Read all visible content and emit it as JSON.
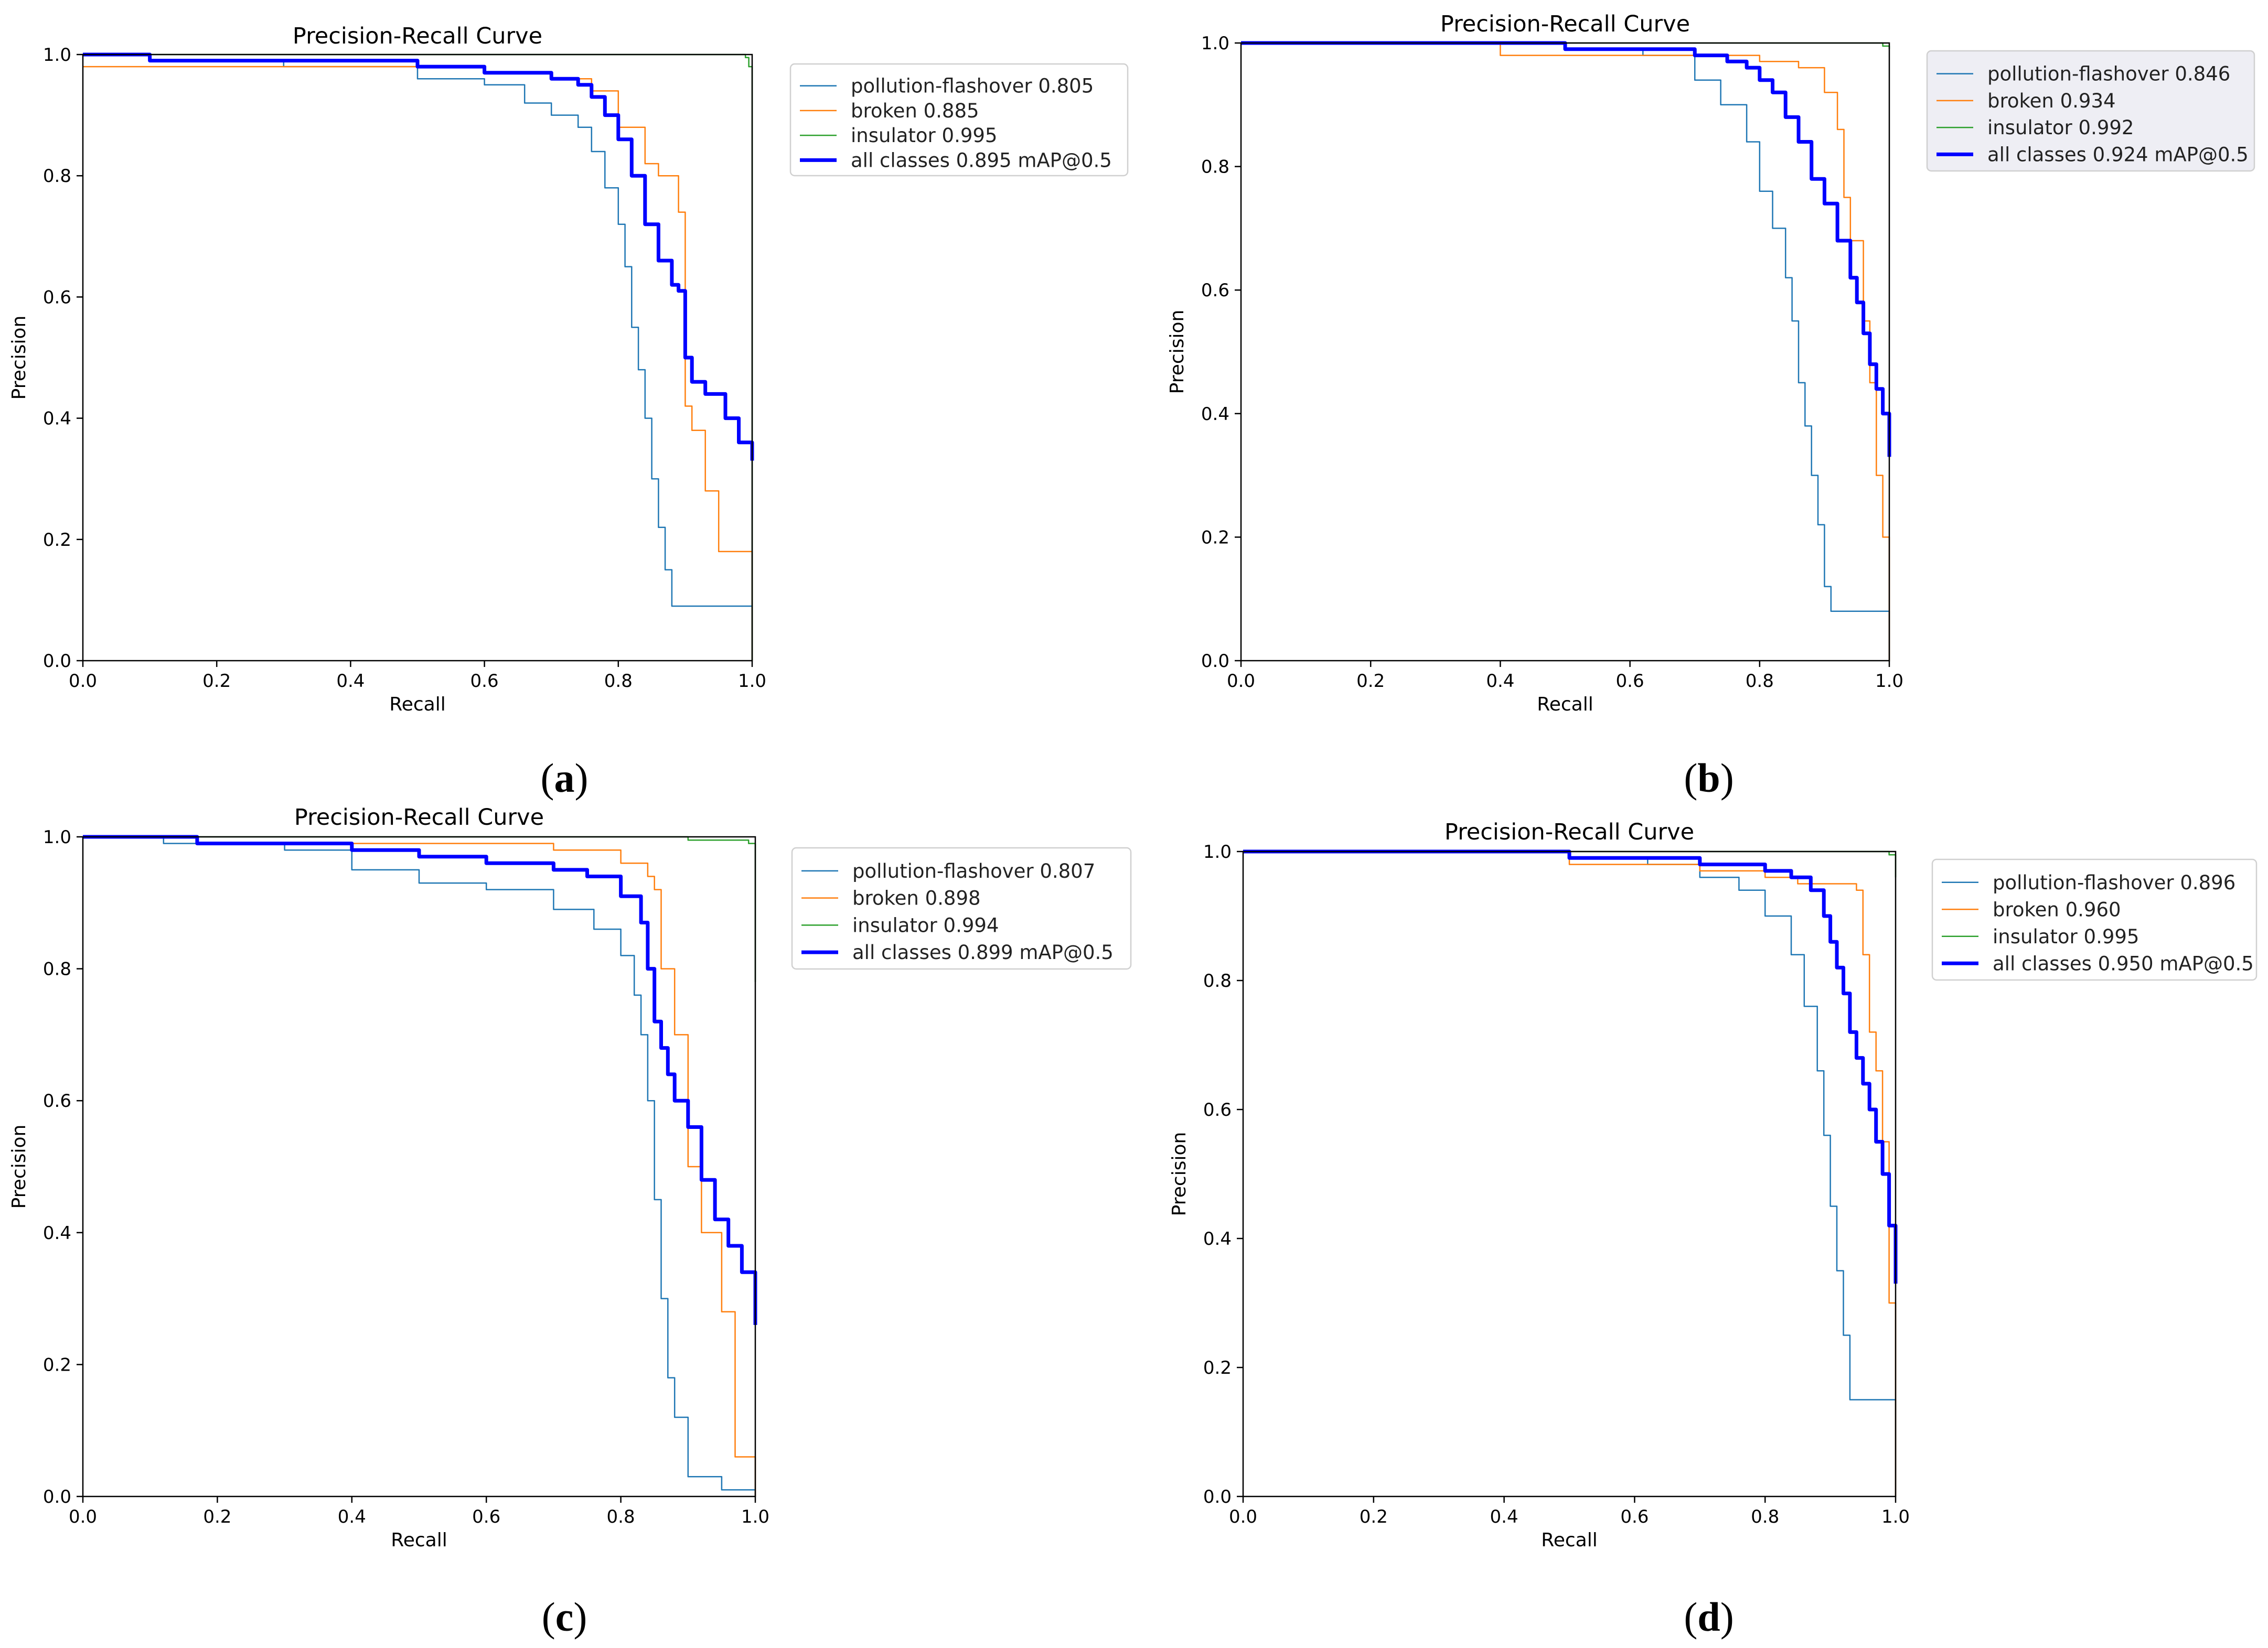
{
  "colors": {
    "pollution_flashover": "#1f77b4",
    "broken": "#ff7f0e",
    "insulator": "#2ca02c",
    "all_classes": "#0000ff"
  },
  "panels": [
    {
      "caption": "(a)",
      "caption_letter": "a",
      "title": "Precision-Recall Curve",
      "xlabel": "Recall",
      "ylabel": "Precision",
      "xticks": [
        "0.0",
        "0.2",
        "0.4",
        "0.6",
        "0.8",
        "1.0"
      ],
      "yticks": [
        "0.0",
        "0.2",
        "0.4",
        "0.6",
        "0.8",
        "1.0"
      ],
      "legend": [
        "pollution-flashover 0.805",
        "broken 0.885",
        "insulator 0.995",
        "all classes 0.895 mAP@0.5"
      ]
    },
    {
      "caption": "(b)",
      "caption_letter": "b",
      "title": "Precision-Recall Curve",
      "xlabel": "Recall",
      "ylabel": "Precision",
      "xticks": [
        "0.0",
        "0.2",
        "0.4",
        "0.6",
        "0.8",
        "1.0"
      ],
      "yticks": [
        "0.0",
        "0.2",
        "0.4",
        "0.6",
        "0.8",
        "1.0"
      ],
      "legend": [
        "pollution-flashover 0.846",
        "broken 0.934",
        "insulator 0.992",
        "all classes 0.924 mAP@0.5"
      ]
    },
    {
      "caption": "(c)",
      "caption_letter": "c",
      "title": "Precision-Recall Curve",
      "xlabel": "Recall",
      "ylabel": "Precision",
      "xticks": [
        "0.0",
        "0.2",
        "0.4",
        "0.6",
        "0.8",
        "1.0"
      ],
      "yticks": [
        "0.0",
        "0.2",
        "0.4",
        "0.6",
        "0.8",
        "1.0"
      ],
      "legend": [
        "pollution-flashover 0.807",
        "broken 0.898",
        "insulator 0.994",
        "all classes 0.899 mAP@0.5"
      ]
    },
    {
      "caption": "(d)",
      "caption_letter": "d",
      "title": "Precision-Recall Curve",
      "xlabel": "Recall",
      "ylabel": "Precision",
      "xticks": [
        "0.0",
        "0.2",
        "0.4",
        "0.6",
        "0.8",
        "1.0"
      ],
      "yticks": [
        "0.0",
        "0.2",
        "0.4",
        "0.6",
        "0.8",
        "1.0"
      ],
      "legend": [
        "pollution-flashover 0.896",
        "broken 0.960",
        "insulator 0.995",
        "all classes 0.950 mAP@0.5"
      ]
    }
  ],
  "chart_data": [
    {
      "type": "line",
      "title": "Precision-Recall Curve",
      "xlabel": "Recall",
      "ylabel": "Precision",
      "xlim": [
        0,
        1
      ],
      "ylim": [
        0,
        1
      ],
      "series": [
        {
          "name": "pollution-flashover 0.805",
          "key": "pollution_flashover",
          "x": [
            0,
            0.1,
            0.3,
            0.5,
            0.6,
            0.66,
            0.7,
            0.74,
            0.76,
            0.78,
            0.8,
            0.81,
            0.82,
            0.83,
            0.84,
            0.85,
            0.86,
            0.87,
            0.88,
            1.0
          ],
          "y": [
            1.0,
            0.99,
            0.98,
            0.96,
            0.95,
            0.92,
            0.9,
            0.88,
            0.84,
            0.78,
            0.72,
            0.65,
            0.55,
            0.48,
            0.4,
            0.3,
            0.22,
            0.15,
            0.09,
            0.0
          ]
        },
        {
          "name": "broken 0.885",
          "key": "broken",
          "x": [
            0,
            0.03,
            0.1,
            0.6,
            0.7,
            0.76,
            0.8,
            0.84,
            0.86,
            0.88,
            0.89,
            0.9,
            0.91,
            0.93,
            0.95,
            0.97,
            1.0
          ],
          "y": [
            0.98,
            0.98,
            0.98,
            0.97,
            0.96,
            0.94,
            0.88,
            0.82,
            0.8,
            0.8,
            0.74,
            0.42,
            0.38,
            0.28,
            0.18,
            0.18,
            0.0
          ]
        },
        {
          "name": "insulator 0.995",
          "key": "insulator",
          "x": [
            0,
            0.95,
            0.99,
            0.995,
            1.0
          ],
          "y": [
            1.0,
            1.0,
            0.995,
            0.98,
            0.0
          ]
        },
        {
          "name": "all classes 0.895 mAP@0.5",
          "key": "all_classes",
          "width": 7,
          "x": [
            0,
            0.1,
            0.3,
            0.5,
            0.6,
            0.7,
            0.74,
            0.76,
            0.78,
            0.8,
            0.82,
            0.84,
            0.86,
            0.88,
            0.89,
            0.9,
            0.91,
            0.93,
            0.96,
            0.98,
            1.0
          ],
          "y": [
            1.0,
            0.99,
            0.99,
            0.98,
            0.97,
            0.96,
            0.95,
            0.93,
            0.9,
            0.86,
            0.8,
            0.72,
            0.66,
            0.62,
            0.61,
            0.5,
            0.46,
            0.44,
            0.4,
            0.36,
            0.33
          ]
        }
      ]
    },
    {
      "type": "line",
      "title": "Precision-Recall Curve",
      "xlabel": "Recall",
      "ylabel": "Precision",
      "xlim": [
        0,
        1
      ],
      "ylim": [
        0,
        1
      ],
      "series": [
        {
          "name": "pollution-flashover 0.846",
          "key": "pollution_flashover",
          "x": [
            0,
            0.3,
            0.5,
            0.62,
            0.7,
            0.74,
            0.78,
            0.8,
            0.82,
            0.84,
            0.85,
            0.86,
            0.87,
            0.88,
            0.89,
            0.9,
            0.91,
            1.0
          ],
          "y": [
            1.0,
            1.0,
            0.99,
            0.98,
            0.94,
            0.9,
            0.84,
            0.76,
            0.7,
            0.62,
            0.55,
            0.45,
            0.38,
            0.3,
            0.22,
            0.12,
            0.08,
            0.0
          ]
        },
        {
          "name": "broken 0.934",
          "key": "broken",
          "x": [
            0,
            0.35,
            0.4,
            0.7,
            0.8,
            0.86,
            0.9,
            0.92,
            0.93,
            0.94,
            0.96,
            0.97,
            0.98,
            0.99,
            1.0
          ],
          "y": [
            1.0,
            1.0,
            0.98,
            0.98,
            0.97,
            0.96,
            0.92,
            0.86,
            0.75,
            0.68,
            0.55,
            0.45,
            0.3,
            0.2,
            0.0
          ]
        },
        {
          "name": "insulator 0.992",
          "key": "insulator",
          "x": [
            0,
            0.9,
            0.99,
            1.0
          ],
          "y": [
            1.0,
            1.0,
            0.995,
            0.99
          ]
        },
        {
          "name": "all classes 0.924 mAP@0.5",
          "key": "all_classes",
          "width": 7,
          "x": [
            0,
            0.35,
            0.5,
            0.6,
            0.7,
            0.75,
            0.78,
            0.8,
            0.82,
            0.84,
            0.86,
            0.88,
            0.9,
            0.92,
            0.94,
            0.95,
            0.96,
            0.97,
            0.98,
            0.99,
            1.0
          ],
          "y": [
            1.0,
            1.0,
            0.99,
            0.99,
            0.98,
            0.97,
            0.96,
            0.94,
            0.92,
            0.88,
            0.84,
            0.78,
            0.74,
            0.68,
            0.62,
            0.58,
            0.53,
            0.48,
            0.44,
            0.4,
            0.33
          ]
        }
      ]
    },
    {
      "type": "line",
      "title": "Precision-Recall Curve",
      "xlabel": "Recall",
      "ylabel": "Precision",
      "xlim": [
        0,
        1
      ],
      "ylim": [
        0,
        1
      ],
      "series": [
        {
          "name": "pollution-flashover 0.807",
          "key": "pollution_flashover",
          "x": [
            0,
            0.12,
            0.3,
            0.4,
            0.5,
            0.6,
            0.7,
            0.76,
            0.8,
            0.82,
            0.83,
            0.84,
            0.85,
            0.86,
            0.87,
            0.88,
            0.9,
            0.95,
            1.0
          ],
          "y": [
            1.0,
            0.99,
            0.98,
            0.95,
            0.93,
            0.92,
            0.89,
            0.86,
            0.82,
            0.76,
            0.7,
            0.6,
            0.45,
            0.3,
            0.18,
            0.12,
            0.03,
            0.01,
            0.0
          ]
        },
        {
          "name": "broken 0.898",
          "key": "broken",
          "x": [
            0,
            0.17,
            0.5,
            0.7,
            0.8,
            0.84,
            0.85,
            0.86,
            0.88,
            0.9,
            0.92,
            0.95,
            0.97,
            1.0
          ],
          "y": [
            1.0,
            0.99,
            0.99,
            0.98,
            0.96,
            0.94,
            0.92,
            0.8,
            0.7,
            0.5,
            0.4,
            0.28,
            0.06,
            0.0
          ]
        },
        {
          "name": "insulator 0.994",
          "key": "insulator",
          "x": [
            0,
            0.85,
            0.9,
            0.99,
            1.0
          ],
          "y": [
            1.0,
            1.0,
            0.995,
            0.99,
            0.78
          ]
        },
        {
          "name": "all classes 0.899 mAP@0.5",
          "key": "all_classes",
          "width": 7,
          "x": [
            0,
            0.17,
            0.4,
            0.5,
            0.6,
            0.7,
            0.75,
            0.8,
            0.83,
            0.84,
            0.85,
            0.86,
            0.87,
            0.88,
            0.9,
            0.92,
            0.94,
            0.96,
            0.98,
            1.0
          ],
          "y": [
            1.0,
            0.99,
            0.98,
            0.97,
            0.96,
            0.95,
            0.94,
            0.91,
            0.87,
            0.8,
            0.72,
            0.68,
            0.64,
            0.6,
            0.56,
            0.48,
            0.42,
            0.38,
            0.34,
            0.26
          ]
        }
      ]
    },
    {
      "type": "line",
      "title": "Precision-Recall Curve",
      "xlabel": "Recall",
      "ylabel": "Precision",
      "xlim": [
        0,
        1
      ],
      "ylim": [
        0,
        1
      ],
      "series": [
        {
          "name": "pollution-flashover 0.896",
          "key": "pollution_flashover",
          "x": [
            0,
            0.3,
            0.5,
            0.62,
            0.7,
            0.76,
            0.8,
            0.84,
            0.86,
            0.88,
            0.89,
            0.9,
            0.91,
            0.92,
            0.93,
            1.0
          ],
          "y": [
            1.0,
            1.0,
            0.99,
            0.98,
            0.96,
            0.94,
            0.9,
            0.84,
            0.76,
            0.66,
            0.56,
            0.45,
            0.35,
            0.25,
            0.15,
            0.0
          ]
        },
        {
          "name": "broken 0.960",
          "key": "broken",
          "x": [
            0,
            0.3,
            0.5,
            0.7,
            0.8,
            0.85,
            0.9,
            0.94,
            0.95,
            0.96,
            0.97,
            0.98,
            0.99,
            1.0
          ],
          "y": [
            1.0,
            1.0,
            0.98,
            0.97,
            0.96,
            0.95,
            0.95,
            0.94,
            0.84,
            0.72,
            0.66,
            0.55,
            0.3,
            0.0
          ]
        },
        {
          "name": "insulator 0.995",
          "key": "insulator",
          "x": [
            0,
            0.95,
            0.99,
            1.0
          ],
          "y": [
            1.0,
            1.0,
            0.995,
            0.96
          ]
        },
        {
          "name": "all classes 0.950 mAP@0.5",
          "key": "all_classes",
          "width": 7,
          "x": [
            0,
            0.4,
            0.5,
            0.6,
            0.7,
            0.8,
            0.84,
            0.87,
            0.89,
            0.9,
            0.91,
            0.92,
            0.93,
            0.94,
            0.95,
            0.96,
            0.97,
            0.98,
            0.99,
            1.0
          ],
          "y": [
            1.0,
            1.0,
            0.99,
            0.99,
            0.98,
            0.97,
            0.96,
            0.94,
            0.9,
            0.86,
            0.82,
            0.78,
            0.72,
            0.68,
            0.64,
            0.6,
            0.55,
            0.5,
            0.42,
            0.33
          ]
        }
      ]
    }
  ]
}
